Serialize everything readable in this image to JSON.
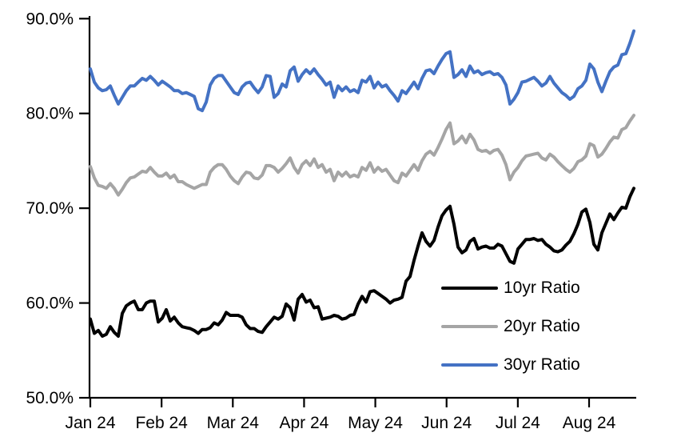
{
  "chart_data": {
    "type": "line",
    "title": "",
    "xlabel": "",
    "ylabel": "",
    "grid": "off",
    "legend_position": "inside-right-lower",
    "ylim": [
      50,
      90
    ],
    "y_ticks": [
      90,
      80,
      70,
      60,
      50
    ],
    "y_tick_labels": [
      "90.0%",
      "80.0%",
      "70.0%",
      "60.0%",
      "50.0%"
    ],
    "x_tick_labels": [
      "Jan 24",
      "Feb 24",
      "Mar 24",
      "Apr 24",
      "May 24",
      "Jun 24",
      "Jul 24",
      "Aug 24"
    ],
    "series": [
      {
        "name": "10yr Ratio",
        "color": "#000000",
        "values": [
          58.3,
          56.8,
          57.1,
          56.5,
          56.7,
          57.5,
          56.9,
          56.5,
          58.9,
          59.7,
          60.0,
          60.2,
          59.3,
          59.3,
          60.0,
          60.2,
          60.2,
          58.0,
          58.4,
          59.3,
          58.1,
          58.5,
          57.9,
          57.5,
          57.4,
          57.3,
          57.1,
          56.8,
          57.2,
          57.2,
          57.4,
          57.9,
          57.7,
          58.2,
          59.0,
          58.7,
          58.7,
          58.7,
          58.5,
          57.7,
          57.3,
          57.3,
          57.0,
          56.9,
          57.5,
          58.0,
          58.5,
          58.3,
          58.6,
          59.9,
          59.5,
          58.2,
          60.4,
          60.9,
          60.1,
          60.3,
          59.5,
          59.6,
          58.3,
          58.4,
          58.5,
          58.7,
          58.6,
          58.3,
          58.4,
          58.7,
          58.8,
          59.9,
          60.7,
          60.1,
          61.2,
          61.3,
          61.0,
          60.7,
          60.4,
          60.0,
          60.3,
          60.4,
          60.6,
          62.3,
          62.8,
          64.5,
          66.0,
          67.4,
          66.5,
          66.0,
          66.6,
          68.0,
          69.2,
          69.8,
          70.2,
          68.3,
          65.9,
          65.3,
          65.6,
          66.5,
          66.8,
          65.7,
          65.9,
          66.0,
          65.8,
          65.8,
          66.2,
          66.0,
          65.2,
          64.4,
          64.2,
          65.7,
          66.2,
          66.7,
          66.7,
          66.8,
          66.6,
          66.7,
          66.2,
          65.9,
          65.5,
          65.4,
          65.6,
          66.1,
          66.5,
          67.3,
          68.3,
          69.6,
          69.9,
          68.5,
          66.2,
          65.6,
          67.4,
          68.4,
          69.4,
          68.8,
          69.5,
          70.1,
          70.0,
          71.2,
          72.1
        ]
      },
      {
        "name": "20yr Ratio",
        "color": "#A5A5A5",
        "values": [
          74.4,
          73.2,
          72.4,
          72.3,
          72.1,
          72.6,
          72.1,
          71.4,
          72.0,
          72.7,
          73.2,
          73.3,
          73.6,
          73.9,
          73.8,
          74.3,
          73.8,
          73.4,
          73.4,
          73.7,
          73.2,
          73.5,
          72.8,
          72.8,
          72.5,
          72.3,
          72.1,
          72.3,
          72.5,
          72.5,
          73.8,
          74.3,
          74.6,
          74.6,
          74.1,
          73.4,
          72.9,
          72.6,
          73.3,
          73.8,
          73.7,
          73.2,
          73.1,
          73.5,
          74.5,
          74.5,
          74.3,
          73.8,
          74.2,
          74.7,
          75.3,
          74.3,
          73.7,
          74.6,
          75.0,
          74.5,
          75.2,
          74.3,
          74.6,
          73.8,
          74.1,
          72.9,
          73.8,
          73.4,
          73.8,
          73.3,
          73.5,
          73.3,
          74.3,
          74.0,
          74.8,
          73.8,
          74.3,
          73.9,
          74.1,
          73.5,
          72.9,
          72.7,
          73.7,
          73.4,
          74.0,
          74.6,
          74.0,
          75.0,
          75.7,
          76.0,
          75.6,
          76.4,
          77.3,
          78.3,
          79.0,
          76.8,
          77.1,
          77.6,
          76.9,
          77.8,
          77.2,
          76.2,
          76.0,
          76.1,
          75.8,
          76.1,
          76.2,
          75.6,
          74.6,
          73.0,
          73.8,
          74.3,
          75.0,
          75.5,
          75.6,
          75.7,
          75.8,
          75.3,
          75.1,
          75.7,
          75.4,
          74.9,
          74.5,
          74.1,
          73.8,
          74.2,
          74.9,
          75.1,
          75.5,
          76.8,
          76.6,
          75.4,
          75.7,
          76.3,
          77.0,
          77.5,
          77.4,
          78.3,
          78.5,
          79.2,
          79.8
        ]
      },
      {
        "name": "30yr Ratio",
        "color": "#4472C4",
        "values": [
          84.7,
          83.3,
          82.7,
          82.4,
          82.5,
          82.9,
          81.9,
          81.0,
          81.7,
          82.4,
          82.9,
          82.9,
          83.3,
          83.7,
          83.5,
          83.9,
          83.5,
          83.0,
          83.4,
          83.1,
          82.8,
          82.4,
          82.4,
          82.1,
          82.2,
          82.0,
          81.8,
          80.5,
          80.3,
          81.2,
          83.0,
          83.7,
          84.0,
          84.0,
          83.4,
          82.8,
          82.2,
          82.0,
          82.8,
          83.2,
          83.3,
          82.7,
          82.2,
          82.8,
          84.0,
          83.9,
          81.7,
          82.1,
          83.1,
          82.8,
          84.5,
          84.9,
          83.4,
          84.1,
          84.6,
          84.2,
          84.7,
          84.1,
          83.6,
          83.0,
          83.3,
          81.7,
          82.9,
          82.4,
          82.8,
          82.3,
          82.5,
          82.2,
          83.5,
          83.3,
          83.9,
          82.7,
          83.3,
          82.8,
          83.0,
          82.4,
          81.9,
          81.3,
          82.4,
          82.1,
          82.7,
          83.3,
          82.6,
          83.7,
          84.5,
          84.6,
          84.2,
          85.0,
          85.7,
          86.3,
          86.5,
          83.8,
          84.1,
          84.6,
          83.9,
          85.0,
          84.3,
          84.5,
          84.1,
          84.3,
          84.4,
          84.1,
          84.2,
          83.8,
          83.0,
          81.0,
          81.5,
          82.2,
          83.3,
          83.4,
          83.6,
          83.8,
          83.4,
          82.9,
          83.2,
          83.9,
          83.2,
          82.7,
          82.2,
          81.9,
          81.5,
          81.8,
          82.6,
          82.9,
          83.5,
          85.2,
          84.7,
          83.3,
          82.3,
          83.4,
          84.4,
          84.9,
          85.1,
          86.2,
          86.3,
          87.4,
          88.7
        ]
      }
    ]
  }
}
